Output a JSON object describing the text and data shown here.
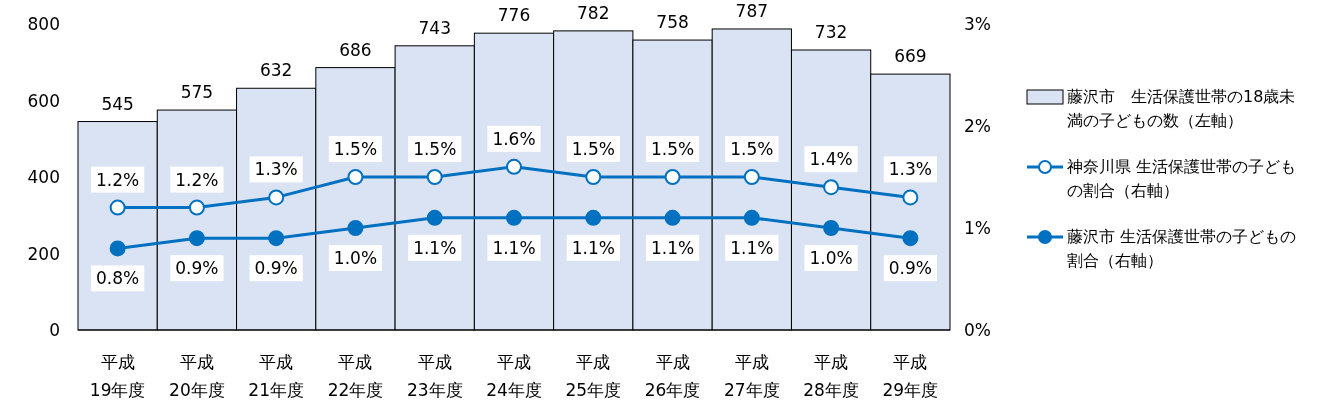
{
  "chart_data": {
    "type": "bar",
    "categories": [
      "平成19年度",
      "平成20年度",
      "平成21年度",
      "平成22年度",
      "平成23年度",
      "平成24年度",
      "平成25年度",
      "平成26年度",
      "平成27年度",
      "平成28年度",
      "平成29年度"
    ],
    "series": [
      {
        "name": "藤沢市　生活保護世帯の18歳未満の子どもの数（左軸）",
        "color": "#dae3f3",
        "values": [
          545,
          575,
          632,
          686,
          743,
          776,
          782,
          758,
          787,
          732,
          669
        ],
        "value_labels": [
          "545",
          "575",
          "632",
          "686",
          "743",
          "776",
          "782",
          "758",
          "787",
          "732",
          "669"
        ]
      },
      {
        "name": "神奈川県 生活保護世帯の子どもの割合（右軸）",
        "type": "line",
        "axis": "y2",
        "color": "#0070c0",
        "marker": "circle-open",
        "values": [
          1.2,
          1.2,
          1.3,
          1.5,
          1.5,
          1.6,
          1.5,
          1.5,
          1.5,
          1.4,
          1.3
        ],
        "value_labels": [
          "1.2%",
          "1.2%",
          "1.3%",
          "1.5%",
          "1.5%",
          "1.6%",
          "1.5%",
          "1.5%",
          "1.5%",
          "1.4%",
          "1.3%"
        ]
      },
      {
        "name": "藤沢市 生活保護世帯の子どもの割合（右軸）",
        "type": "line",
        "axis": "y2",
        "color": "#0070c0",
        "marker": "circle",
        "values": [
          0.8,
          0.9,
          0.9,
          1.0,
          1.1,
          1.1,
          1.1,
          1.1,
          1.1,
          1.0,
          0.9
        ],
        "value_labels": [
          "0.8%",
          "0.9%",
          "0.9%",
          "1.0%",
          "1.1%",
          "1.1%",
          "1.1%",
          "1.1%",
          "1.1%",
          "1.0%",
          "0.9%"
        ]
      }
    ],
    "ylim": [
      0,
      800
    ],
    "yticks": [
      0,
      200,
      400,
      600,
      800
    ],
    "y2lim": [
      0,
      3
    ],
    "y2ticks": [
      {
        "value": 0,
        "label": "0%"
      },
      {
        "value": 1,
        "label": "1%"
      },
      {
        "value": 2,
        "label": "2%"
      },
      {
        "value": 3,
        "label": "3%"
      }
    ],
    "grid": false,
    "legend": "right",
    "line_style": "solid"
  }
}
